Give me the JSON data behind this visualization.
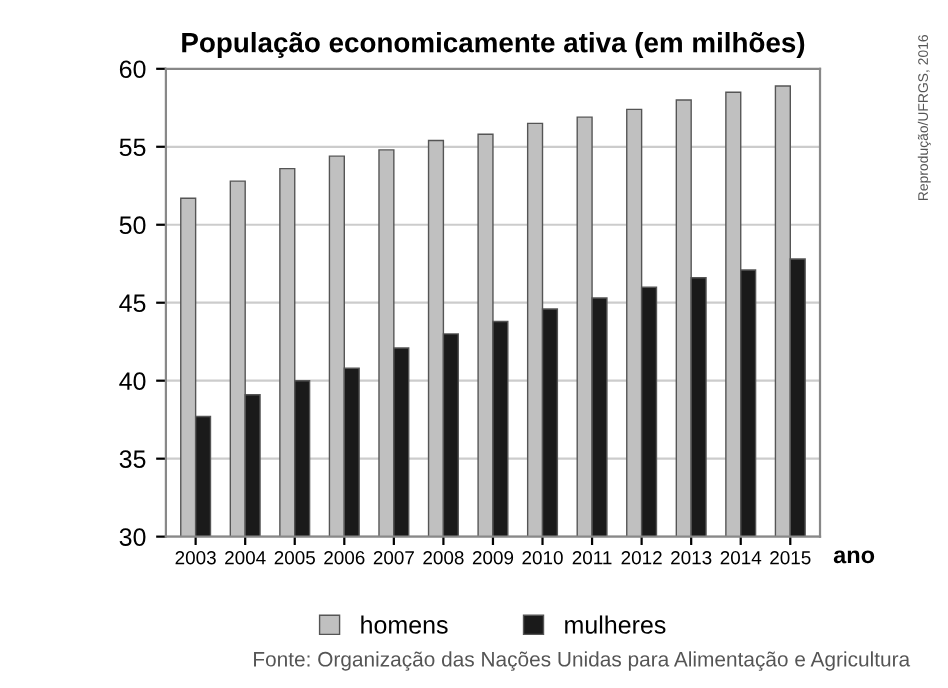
{
  "chart_data": {
    "type": "bar",
    "title": "População economicamente ativa (em milhões)",
    "xlabel": "ano",
    "categories": [
      "2003",
      "2004",
      "2005",
      "2006",
      "2007",
      "2008",
      "2009",
      "2010",
      "2011",
      "2012",
      "2013",
      "2014",
      "2015"
    ],
    "series": [
      {
        "name": "homens",
        "color": "#c0c0c0",
        "values": [
          51.7,
          52.8,
          53.6,
          54.4,
          54.8,
          55.4,
          55.8,
          56.5,
          56.9,
          57.4,
          58.0,
          58.5,
          58.9
        ]
      },
      {
        "name": "mulheres",
        "color": "#1a1a1a",
        "values": [
          37.7,
          39.1,
          40.0,
          40.8,
          42.1,
          43.0,
          43.8,
          44.6,
          45.3,
          46.0,
          46.6,
          47.1,
          47.8
        ]
      }
    ],
    "ylim": [
      30,
      60
    ],
    "yticks": [
      30,
      35,
      40,
      45,
      50,
      55,
      60
    ],
    "grid": "y",
    "legend": "bottom",
    "annotations": [
      "Fonte: Organização das Nações Unidas para Alimentação e Agricultura",
      "Reprodução/UFRGS, 2016"
    ]
  }
}
